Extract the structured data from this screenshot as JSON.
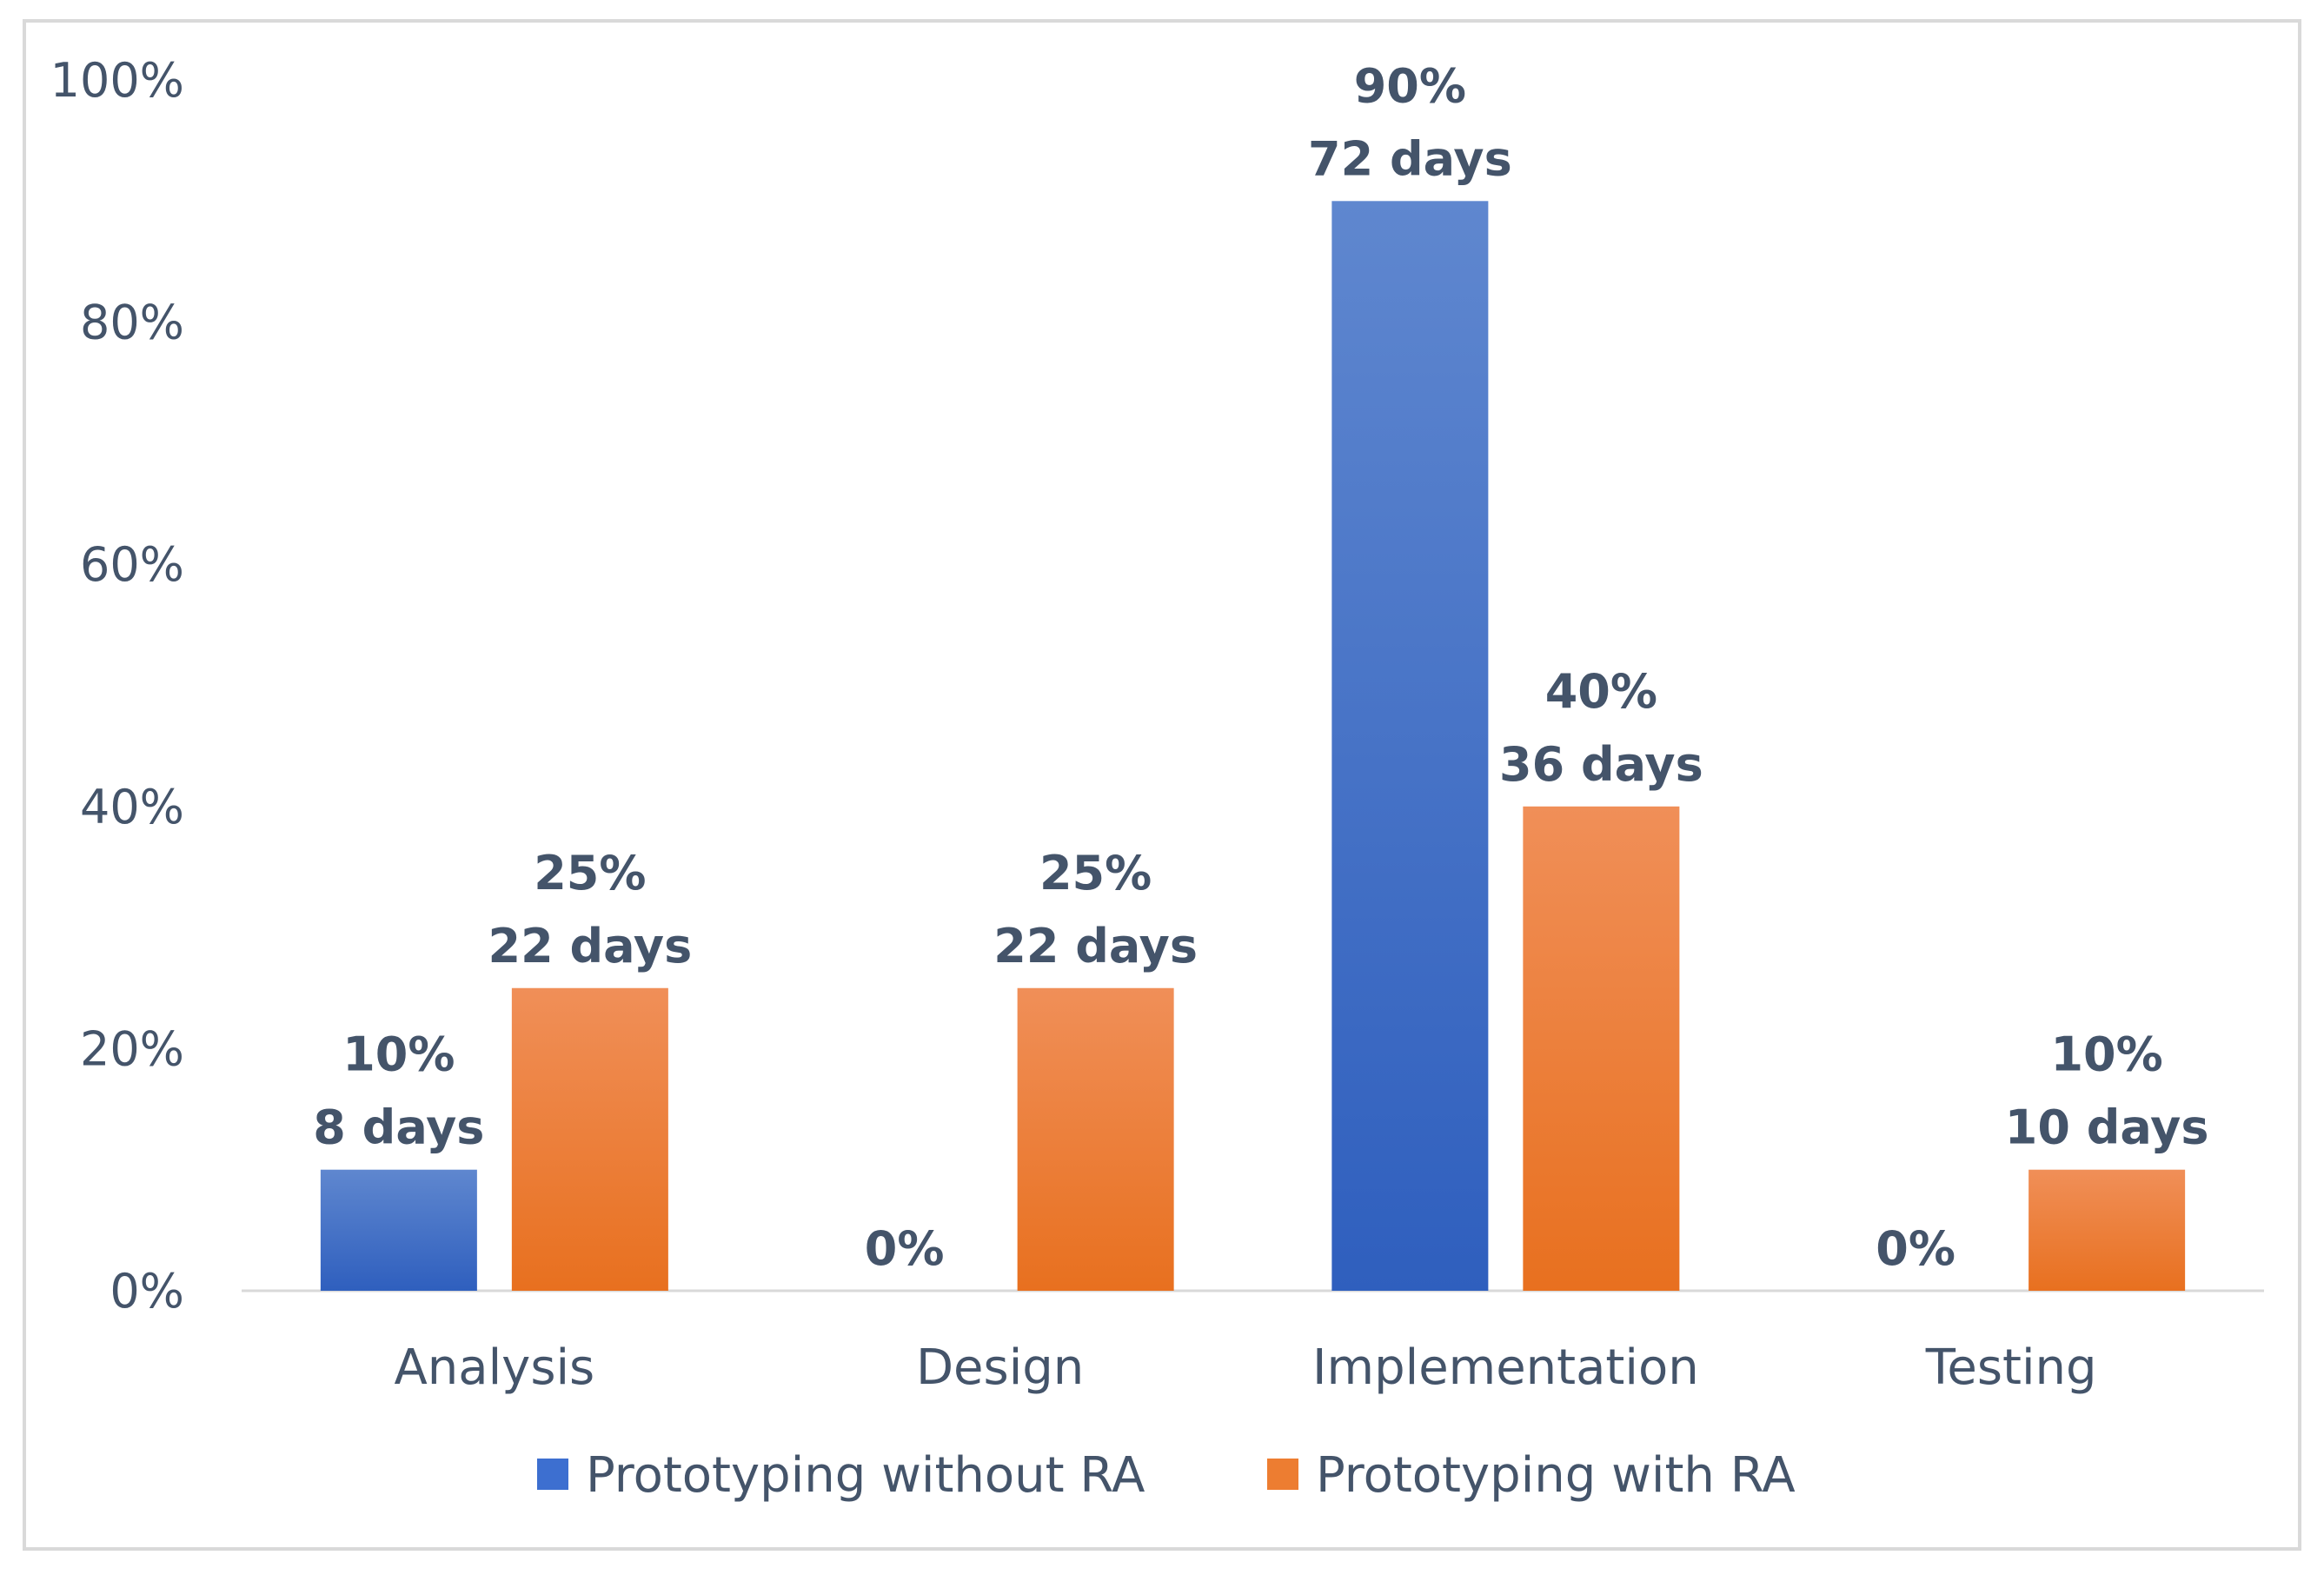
{
  "chart_data": {
    "type": "bar",
    "title": "",
    "xlabel": "",
    "ylabel": "",
    "ylim": [
      0,
      100
    ],
    "yticks": [
      {
        "value": 0,
        "label": "0%"
      },
      {
        "value": 20,
        "label": "20%"
      },
      {
        "value": 40,
        "label": "40%"
      },
      {
        "value": 60,
        "label": "60%"
      },
      {
        "value": 80,
        "label": "80%"
      },
      {
        "value": 100,
        "label": "100%"
      }
    ],
    "grid": false,
    "legend_position": "bottom",
    "categories": [
      "Analysis",
      "Design",
      "Implementation",
      "Testing"
    ],
    "series": [
      {
        "name": "Prototyping without RA",
        "color": "#3d6fd0",
        "color_light": "#5b86d6",
        "values": [
          10,
          0,
          90,
          0
        ],
        "labels": [
          [
            "10%",
            "8 days"
          ],
          [
            "0%"
          ],
          [
            "90%",
            "72 days"
          ],
          [
            "0%"
          ]
        ]
      },
      {
        "name": "Prototyping with RA",
        "color": "#ed7d31",
        "color_light": "#f28c55",
        "values": [
          25,
          25,
          40,
          10
        ],
        "labels": [
          [
            "25%",
            "22 days"
          ],
          [
            "25%",
            "22 days"
          ],
          [
            "40%",
            "36 days"
          ],
          [
            "10%",
            "10 days"
          ]
        ]
      }
    ]
  }
}
